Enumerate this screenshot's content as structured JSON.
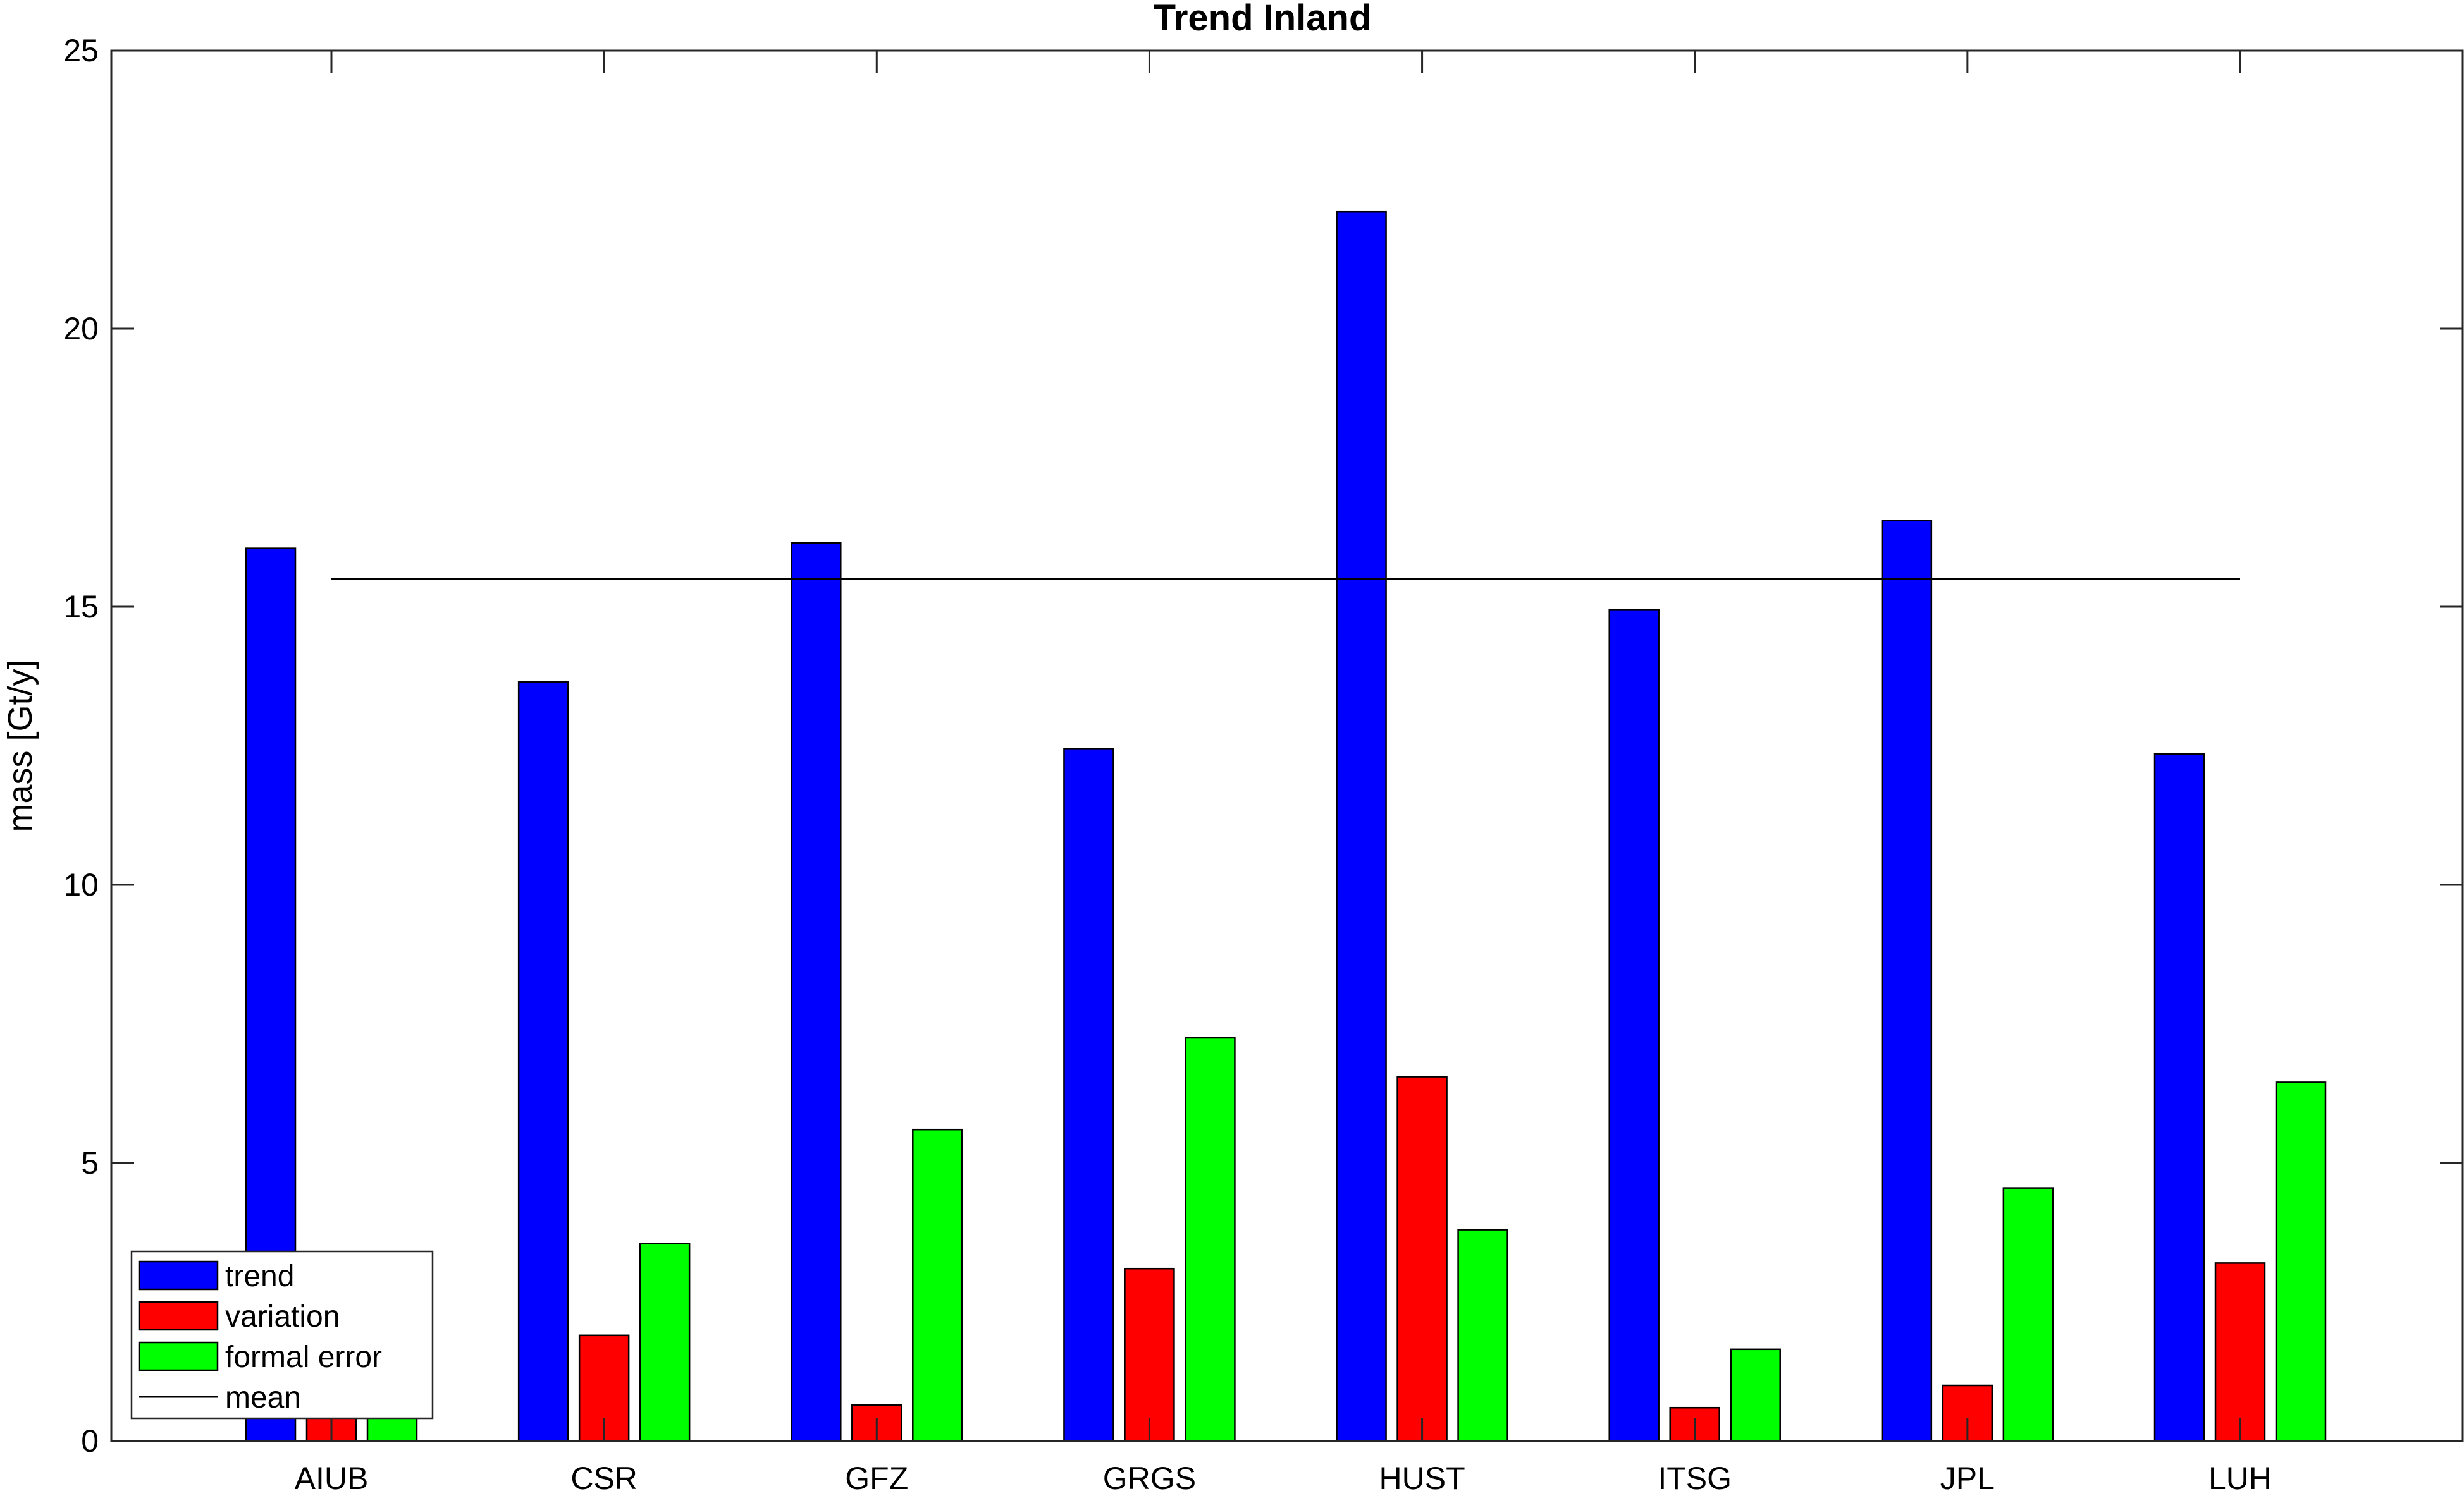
{
  "chart_data": {
    "type": "bar",
    "title": "Trend Inland",
    "xlabel": "",
    "ylabel": "mass [Gt/y]",
    "ylim": [
      0,
      25
    ],
    "yticks": [
      0,
      5,
      10,
      15,
      20,
      25
    ],
    "categories": [
      "AIUB",
      "CSR",
      "GFZ",
      "GRGS",
      "HUST",
      "ITSG",
      "JPL",
      "LUH"
    ],
    "series": [
      {
        "name": "trend",
        "color": "#0000ff",
        "values": [
          16.05,
          13.65,
          16.15,
          12.45,
          22.1,
          14.95,
          16.55,
          12.35
        ]
      },
      {
        "name": "variation",
        "color": "#ff0000",
        "values": [
          1.1,
          1.9,
          0.65,
          3.1,
          6.55,
          0.6,
          1.0,
          3.2
        ]
      },
      {
        "name": "formal error",
        "color": "#00ff00",
        "values": [
          0.9,
          3.55,
          5.6,
          7.25,
          3.8,
          1.65,
          4.55,
          6.45
        ]
      }
    ],
    "mean": {
      "name": "mean",
      "value": 15.5,
      "color": "#000000"
    },
    "grid": false,
    "legend_position": "bottom-left"
  }
}
